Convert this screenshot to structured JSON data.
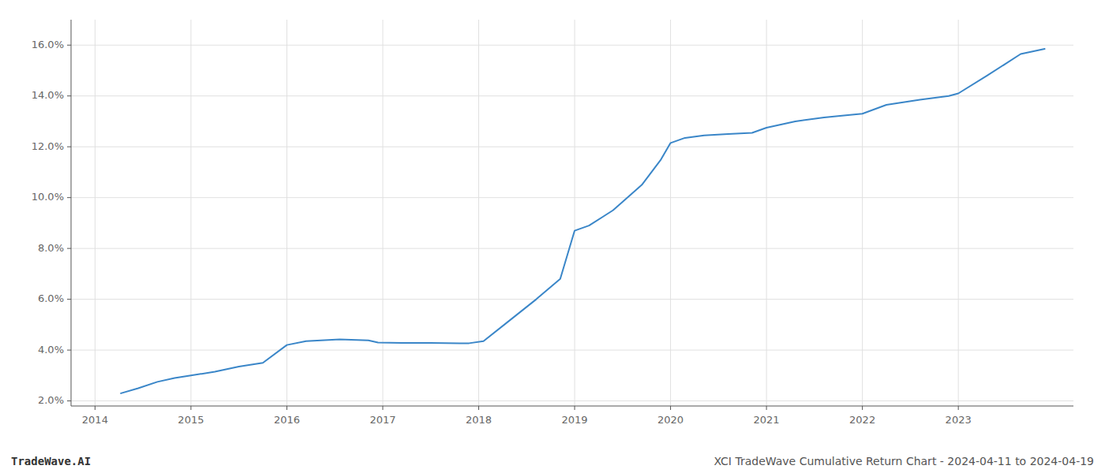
{
  "chart_data": {
    "type": "line",
    "annotations": [
      "TradeWave.AI",
      "XCI TradeWave Cumulative Return Chart - 2024-04-11 to 2024-04-19"
    ],
    "color": "#3a86c8",
    "grid": true,
    "x": [
      2014.27,
      2014.45,
      2014.65,
      2014.83,
      2015.0,
      2015.25,
      2015.5,
      2015.75,
      2016.0,
      2016.2,
      2016.55,
      2016.85,
      2016.95,
      2017.2,
      2017.5,
      2017.8,
      2017.9,
      2018.05,
      2018.3,
      2018.6,
      2018.85,
      2019.0,
      2019.15,
      2019.4,
      2019.7,
      2019.9,
      2020.0,
      2020.15,
      2020.35,
      2020.6,
      2020.85,
      2021.0,
      2021.3,
      2021.6,
      2021.85,
      2022.0,
      2022.25,
      2022.6,
      2022.9,
      2023.0,
      2023.3,
      2023.65,
      2023.9
    ],
    "values": [
      2.3,
      2.5,
      2.75,
      2.9,
      3.0,
      3.15,
      3.35,
      3.5,
      4.2,
      4.35,
      4.42,
      4.38,
      4.3,
      4.28,
      4.28,
      4.27,
      4.27,
      4.35,
      5.1,
      6.0,
      6.8,
      8.7,
      8.9,
      9.5,
      10.5,
      11.5,
      12.15,
      12.35,
      12.45,
      12.5,
      12.55,
      12.75,
      13.0,
      13.15,
      13.25,
      13.3,
      13.65,
      13.85,
      14.0,
      14.1,
      14.8,
      15.65,
      15.85
    ],
    "xlim": [
      2013.75,
      2024.2
    ],
    "xticks": [
      2014,
      2015,
      2016,
      2017,
      2018,
      2019,
      2020,
      2021,
      2022,
      2023
    ],
    "ylim": [
      1.8,
      17.0
    ],
    "yticks": [
      {
        "value": 2.0,
        "label": "2.0%"
      },
      {
        "value": 4.0,
        "label": "4.0%"
      },
      {
        "value": 6.0,
        "label": "6.0%"
      },
      {
        "value": 8.0,
        "label": "8.0%"
      },
      {
        "value": 10.0,
        "label": "10.0%"
      },
      {
        "value": 12.0,
        "label": "12.0%"
      },
      {
        "value": 14.0,
        "label": "14.0%"
      },
      {
        "value": 16.0,
        "label": "16.0%"
      }
    ]
  }
}
